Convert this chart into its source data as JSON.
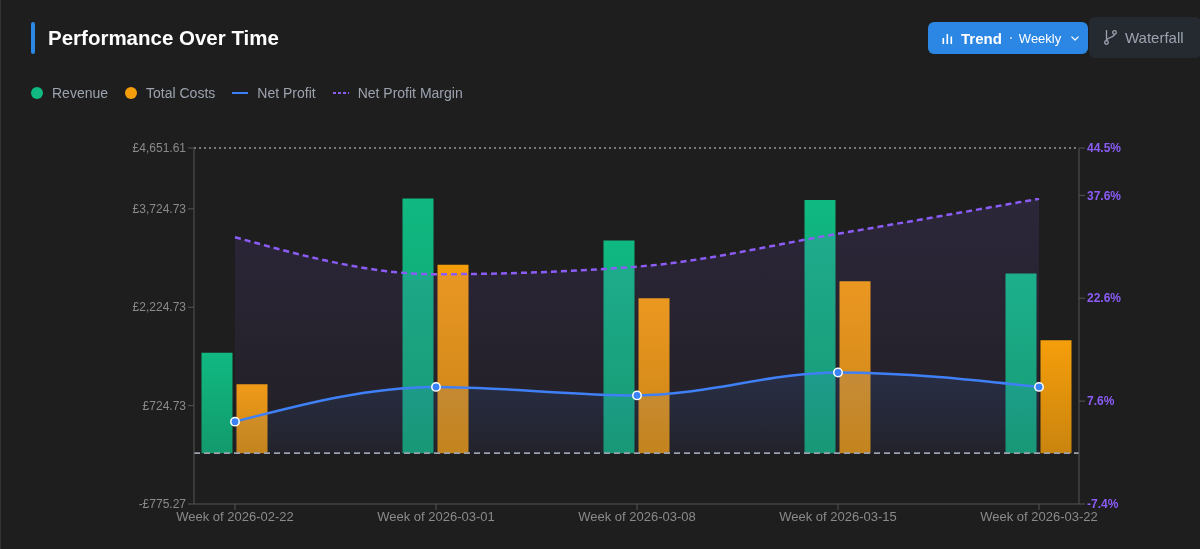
{
  "chart_data": {
    "type": "bar",
    "title": "Performance Over Time",
    "categories": [
      "Week of 2026-02-22",
      "Week of 2026-03-01",
      "Week of 2026-03-08",
      "Week of 2026-03-15",
      "Week of 2026-03-22"
    ],
    "series": [
      {
        "name": "Revenue",
        "color": "#10b981",
        "values": [
          1530,
          3880,
          3240,
          3860,
          2740
        ]
      },
      {
        "name": "Total Costs",
        "color": "#f59e0b",
        "values": [
          1050,
          2870,
          2360,
          2620,
          1720
        ]
      },
      {
        "name": "Net Profit",
        "type": "area",
        "color": "#3b82f6",
        "values": [
          480,
          1010,
          880,
          1230,
          1010
        ],
        "marker": "circle",
        "line_style": "solid"
      },
      {
        "name": "Net Profit Margin",
        "type": "area",
        "color": "#8b5cf6",
        "values": [
          31.5,
          26.1,
          27.2,
          32.0,
          37.1
        ],
        "axis": "y2",
        "marker": "none",
        "line_style": "dashed"
      }
    ],
    "ylim": [
      -775.27,
      4651.61
    ],
    "yticks": [
      {
        "value": -775.27,
        "label": "-£775.27"
      },
      {
        "value": 724.73,
        "label": "£724.73"
      },
      {
        "value": 2224.73,
        "label": "£2,224.73"
      },
      {
        "value": 3724.73,
        "label": "£3,724.73"
      },
      {
        "value": 4651.61,
        "label": "£4,651.61"
      }
    ],
    "y2lim": [
      -7.4,
      44.5
    ],
    "y2ticks": [
      {
        "value": -7.4,
        "label": "-7.4%"
      },
      {
        "value": 7.6,
        "label": "7.6%"
      },
      {
        "value": 22.6,
        "label": "22.6%"
      },
      {
        "value": 37.6,
        "label": "37.6%"
      },
      {
        "value": 44.5,
        "label": "44.5%"
      }
    ],
    "ref_lines": [
      {
        "axis": "y",
        "value": 4651.61,
        "color": "#d4d4d4",
        "line_style": "dotted"
      },
      {
        "axis": "y",
        "value": 0,
        "color": "#9ca3af",
        "line_style": "dashed"
      }
    ],
    "legend": "top left",
    "annotations": [
      "Trend",
      "Weekly",
      "Waterfall"
    ]
  }
}
